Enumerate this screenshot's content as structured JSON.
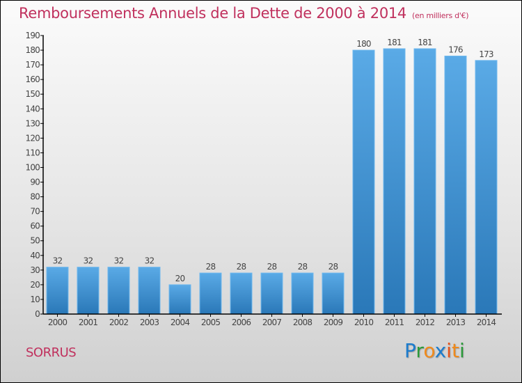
{
  "header": {
    "title": "Remboursements Annuels de la Dette de 2000 à 2014",
    "unit": "(en milliers d'€)"
  },
  "footer": {
    "commune": "SORRUS",
    "logo": {
      "letters": [
        "P",
        "r",
        "o",
        "x",
        "i",
        "t",
        "i"
      ],
      "colors": [
        "#1c7ccd",
        "#2b9a3a",
        "#f08a1c",
        "#1c7ccd",
        "#e8541b",
        "#f08a1c",
        "#2b9a3a"
      ]
    }
  },
  "colors": {
    "title": "#c0305d",
    "bar_top": "#5aaae6",
    "bar_bottom": "#2a78b8",
    "axis": "#000000",
    "tick_label": "#444444"
  },
  "chart_data": {
    "type": "bar",
    "title": "Remboursements Annuels de la Dette de 2000 à 2014",
    "subtitle": "(en milliers d'€)",
    "xlabel": "",
    "ylabel": "",
    "categories": [
      "2000",
      "2001",
      "2002",
      "2003",
      "2004",
      "2005",
      "2006",
      "2007",
      "2008",
      "2009",
      "2010",
      "2011",
      "2012",
      "2013",
      "2014"
    ],
    "values": [
      32,
      32,
      32,
      32,
      20,
      28,
      28,
      28,
      28,
      28,
      180,
      181,
      181,
      176,
      173
    ],
    "ylim": [
      0,
      190
    ],
    "yticks": [
      0,
      10,
      20,
      30,
      40,
      50,
      60,
      70,
      80,
      90,
      100,
      110,
      120,
      130,
      140,
      150,
      160,
      170,
      180,
      190
    ],
    "grid": false,
    "data_labels": true,
    "legend": "none"
  }
}
